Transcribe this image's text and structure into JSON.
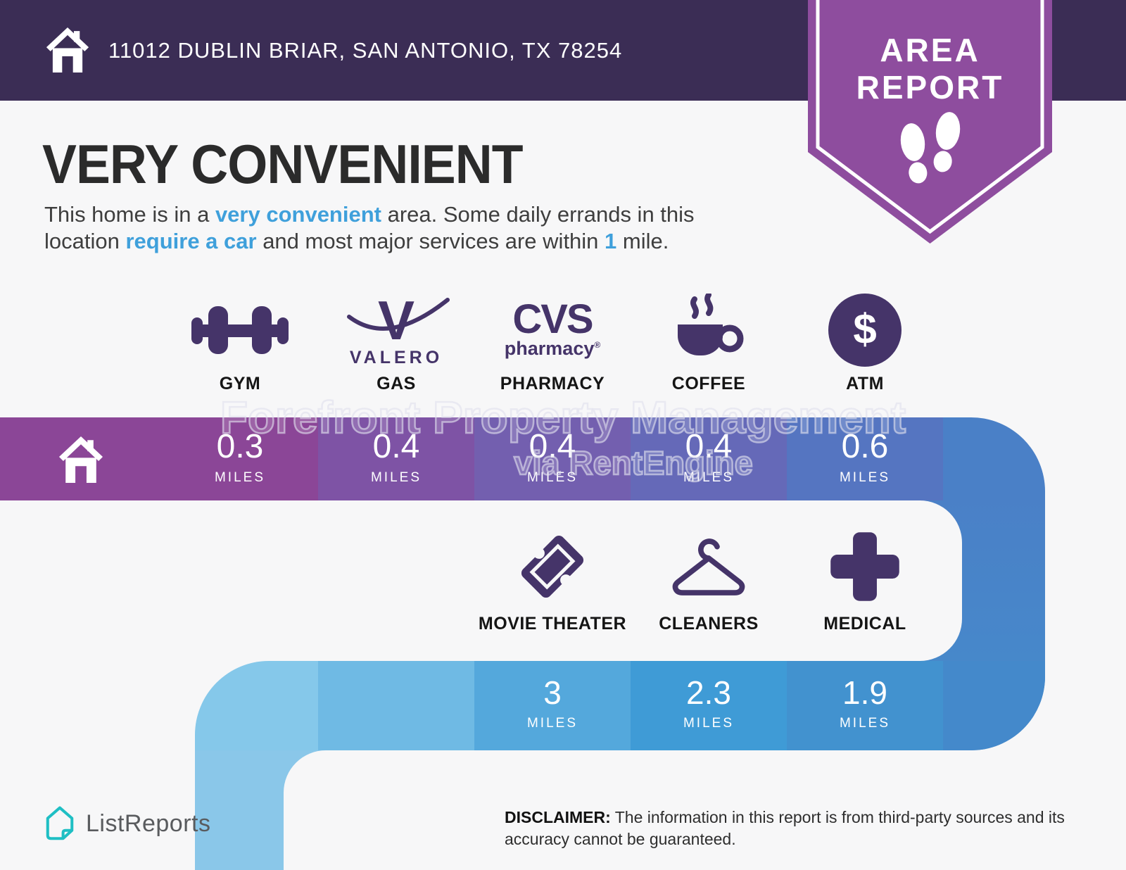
{
  "header": {
    "address": "11012 DUBLIN BRIAR, SAN ANTONIO, TX 78254",
    "bg_color": "#3B2D55"
  },
  "badge": {
    "line1": "AREA",
    "line2": "REPORT",
    "color": "#8E4D9E"
  },
  "intro": {
    "title": "VERY CONVENIENT",
    "line1": [
      {
        "t": "This home is in a "
      },
      {
        "t": "very convenient",
        "b": true
      },
      {
        "t": " area. Some daily errands in this"
      }
    ],
    "line2": [
      {
        "t": "location "
      },
      {
        "t": "require a car",
        "b": true
      },
      {
        "t": " and most major services are within "
      },
      {
        "t": "1",
        "b": true
      },
      {
        "t": " mile."
      }
    ],
    "highlight_color": "#3FA0DB"
  },
  "watermark": {
    "line1": "Forefront Property Management",
    "line2": "via RentEngine"
  },
  "amenities_row1": [
    {
      "name": "gym",
      "label": "GYM",
      "miles": "0.3",
      "unit": "MILES",
      "segment_color": "#8B4697"
    },
    {
      "name": "gas",
      "label": "GAS",
      "miles": "0.4",
      "unit": "MILES",
      "segment_color": "#7E53A5",
      "logo_text": "VALERO"
    },
    {
      "name": "pharmacy",
      "label": "PHARMACY",
      "miles": "0.4",
      "unit": "MILES",
      "segment_color": "#735FAF",
      "logo_title": "CVS",
      "logo_sub": "pharmacy",
      "logo_reg": "®"
    },
    {
      "name": "coffee",
      "label": "COFFEE",
      "miles": "0.4",
      "unit": "MILES",
      "segment_color": "#6569B8"
    },
    {
      "name": "atm",
      "label": "ATM",
      "miles": "0.6",
      "unit": "MILES",
      "segment_color": "#5575C1",
      "dollar": "$"
    }
  ],
  "amenities_row2": [
    {
      "name": "movie-theater",
      "label": "MOVIE THEATER",
      "miles": "3",
      "unit": "MILES",
      "segment_color": "#54A8DC"
    },
    {
      "name": "cleaners",
      "label": "CLEANERS",
      "miles": "2.3",
      "unit": "MILES",
      "segment_color": "#3F9BD6"
    },
    {
      "name": "medical",
      "label": "MEDICAL",
      "miles": "1.9",
      "unit": "MILES",
      "segment_color": "#4292CF"
    }
  ],
  "path_colors": {
    "home_segment": "#8B4697",
    "row1_turn": "#4A80C7",
    "strip_top": "#4A80C7",
    "strip_bottom": "#458CCC",
    "row2_right": "#4489CB",
    "row2_lead": "#6FBAE4",
    "row2_turn": "#85C8EA",
    "descender": "#8AC7E9"
  },
  "footer": {
    "brand": "ListReports",
    "brand_color": "#1FBFC4",
    "disclaimer_line1": [
      {
        "t": "DISCLAIMER:",
        "b": true
      },
      {
        "t": " The information in this report is from third-party sources and its"
      }
    ],
    "disclaimer_line2": [
      {
        "t": "accuracy cannot be guaranteed."
      }
    ]
  }
}
